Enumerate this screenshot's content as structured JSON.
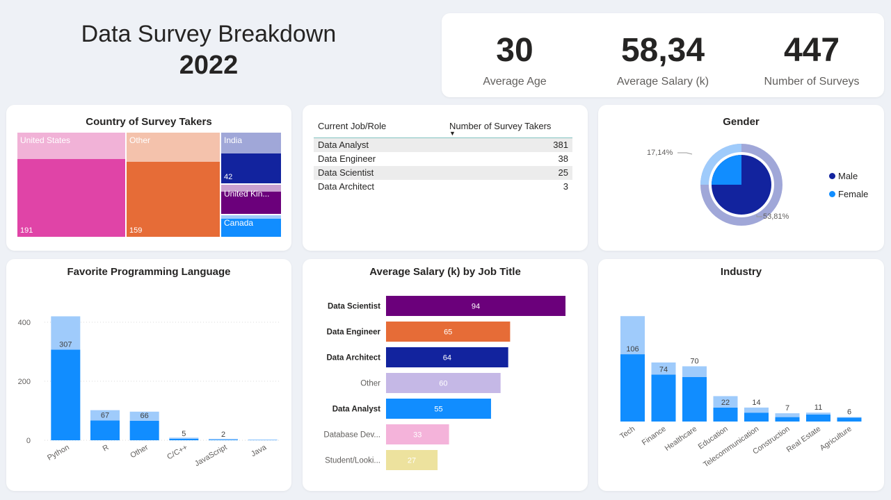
{
  "header": {
    "title": "Data Survey Breakdown",
    "year": "2022"
  },
  "kpis": [
    {
      "value": "30",
      "label": "Average Age"
    },
    {
      "value": "58,34",
      "label": "Average Salary (k)"
    },
    {
      "value": "447",
      "label": "Number of Surveys"
    }
  ],
  "country": {
    "title": "Country of Survey Takers",
    "cells": [
      {
        "label": "United States",
        "value": "191",
        "color": "#e044a7"
      },
      {
        "label": "Other",
        "value": "159",
        "color": "#e66c37"
      },
      {
        "label": "India",
        "value": "42",
        "color": "#12239e"
      },
      {
        "label": "United Kin...",
        "value": "",
        "color": "#6b007b"
      },
      {
        "label": "Canada",
        "value": "",
        "color": "#118dff"
      }
    ]
  },
  "jobs_table": {
    "col1": "Current Job/Role",
    "col2": "Number of Survey Takers",
    "sort_indicator": "▼",
    "rows": [
      {
        "role": "Data Analyst",
        "count": "381"
      },
      {
        "role": "Data Engineer",
        "count": "38"
      },
      {
        "role": "Data Scientist",
        "count": "25"
      },
      {
        "role": "Data Architect",
        "count": "3"
      }
    ]
  },
  "gender": {
    "title": "Gender",
    "label_female": "17,14%",
    "label_male": "53,81%",
    "legend": [
      {
        "name": "Male",
        "color": "#12239e"
      },
      {
        "name": "Female",
        "color": "#118dff"
      }
    ]
  },
  "chart_data": [
    {
      "type": "bar",
      "title": "Favorite Programming Language",
      "categories": [
        "Python",
        "R",
        "Other",
        "C/C++",
        "JavaScript",
        "Java"
      ],
      "series": [
        {
          "values": [
            307,
            67,
            66,
            5,
            2,
            1
          ],
          "color": "#118dff"
        },
        {
          "values": [
            113,
            35,
            31,
            4,
            3,
            1
          ],
          "color": "#9fcbfb"
        }
      ],
      "data_labels": [
        "307",
        "67",
        "66",
        "5",
        "2",
        ""
      ],
      "yticks": [
        0,
        200,
        400
      ],
      "ylim": [
        0,
        440
      ],
      "grid": true
    },
    {
      "type": "bar",
      "orientation": "horizontal",
      "title": "Average Salary (k) by Job Title",
      "categories": [
        "Data Scientist",
        "Data Engineer",
        "Data Architect",
        "Other",
        "Data Analyst",
        "Database Dev...",
        "Student/Looki..."
      ],
      "bold_categories": [
        true,
        true,
        true,
        false,
        true,
        false,
        false
      ],
      "values": [
        94,
        65,
        64,
        60,
        55,
        33,
        27
      ],
      "colors": [
        "#6b007b",
        "#e66c37",
        "#12239e",
        "#c5b8e6",
        "#118dff",
        "#f4b3da",
        "#ede29e"
      ],
      "xlim": [
        0,
        94
      ]
    },
    {
      "type": "bar",
      "title": "Industry",
      "categories": [
        "Tech",
        "Finance",
        "Healthcare",
        "Education",
        "Telecommunication",
        "Construction",
        "Real Estate",
        "Agriculture"
      ],
      "series": [
        {
          "values": [
            106,
            74,
            70,
            22,
            14,
            7,
            11,
            6
          ],
          "color": "#118dff"
        },
        {
          "values": [
            60,
            19,
            17,
            18,
            8,
            6,
            3,
            1
          ],
          "color": "#9fcbfb"
        }
      ],
      "data_labels": [
        "106",
        "74",
        "70",
        "22",
        "14",
        "7",
        "11",
        "6"
      ],
      "ylim": [
        0,
        175
      ]
    }
  ]
}
